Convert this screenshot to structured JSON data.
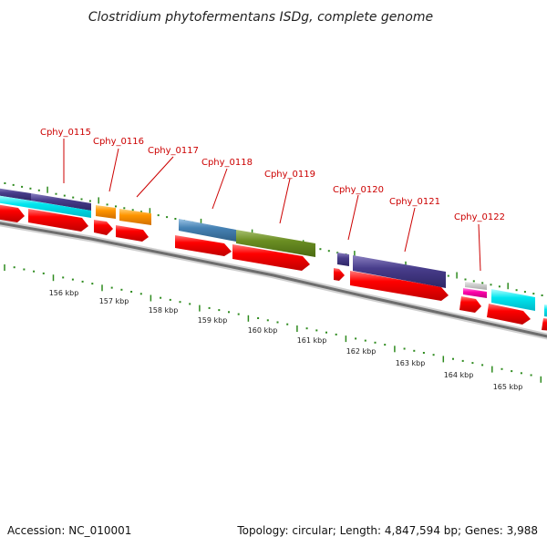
{
  "title": "Clostridium phytofermentans ISDg, complete genome",
  "accession": "Accession: NC_010001",
  "genome_info": "Topology: circular; Length: 4,847,594 bp; Genes: 3,988",
  "colors": {
    "label": "#cc0000",
    "tick": "#2e8b1e",
    "cds": "#ff0000",
    "backbone": "#777777"
  },
  "gene_labels": [
    "Cphy_0115",
    "Cphy_0116",
    "Cphy_0117",
    "Cphy_0118",
    "Cphy_0119",
    "Cphy_0120",
    "Cphy_0121",
    "Cphy_0122"
  ],
  "kbp_labels": [
    "156 kbp",
    "157 kbp",
    "158 kbp",
    "159 kbp",
    "160 kbp",
    "161 kbp",
    "162 kbp",
    "163 kbp",
    "164 kbp",
    "165 kbp"
  ]
}
